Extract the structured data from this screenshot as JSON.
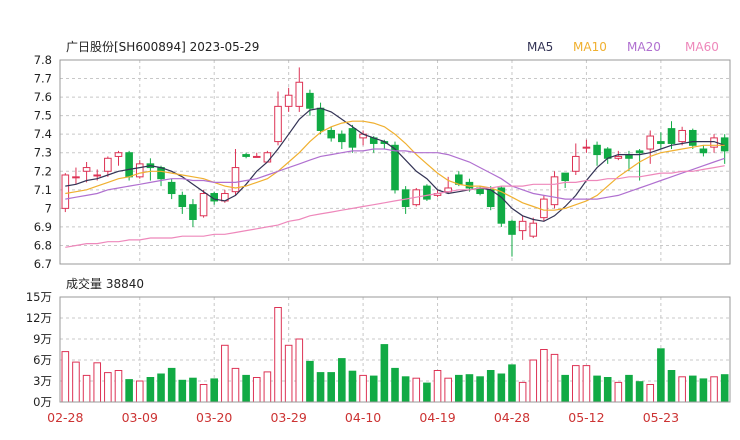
{
  "header": {
    "title": "广日股份[SH600894] 2023-05-29"
  },
  "legend": [
    {
      "label": "MA5",
      "color": "#333355"
    },
    {
      "label": "MA10",
      "color": "#f0b030"
    },
    {
      "label": "MA20",
      "color": "#b070d0"
    },
    {
      "label": "MA60",
      "color": "#ee88bb"
    }
  ],
  "volume_panel": {
    "title": "成交量 38840"
  },
  "colors": {
    "up": "#dd3355",
    "down": "#11aa44"
  },
  "chart_data": [
    {
      "type": "candlestick",
      "title": "广日股份[SH600894] 2023-05-29",
      "ylim": [
        6.7,
        7.8
      ],
      "y_ticks": [
        "7.8",
        "7.7",
        "7.6",
        "7.5",
        "7.4",
        "7.3",
        "7.2",
        "7.1",
        "7",
        "6.9",
        "6.8",
        "6.7"
      ],
      "x_ticks": [
        "02-28",
        "03-09",
        "03-20",
        "03-29",
        "04-10",
        "04-19",
        "04-28",
        "05-12",
        "05-23"
      ],
      "x_tick_index": [
        0,
        7,
        14,
        21,
        28,
        35,
        42,
        49,
        56
      ],
      "grid": true,
      "candles": [
        [
          7.0,
          7.18,
          7.19,
          6.98
        ],
        [
          7.17,
          7.17,
          7.22,
          7.13
        ],
        [
          7.2,
          7.22,
          7.25,
          7.14
        ],
        [
          7.18,
          7.18,
          7.21,
          7.15
        ],
        [
          7.2,
          7.27,
          7.28,
          7.17
        ],
        [
          7.28,
          7.3,
          7.31,
          7.23
        ],
        [
          7.3,
          7.17,
          7.31,
          7.15
        ],
        [
          7.17,
          7.24,
          7.26,
          7.16
        ],
        [
          7.24,
          7.22,
          7.27,
          7.15
        ],
        [
          7.22,
          7.16,
          7.23,
          7.12
        ],
        [
          7.14,
          7.08,
          7.16,
          7.05
        ],
        [
          7.07,
          7.01,
          7.09,
          6.97
        ],
        [
          7.02,
          6.94,
          7.05,
          6.9
        ],
        [
          6.96,
          7.08,
          7.1,
          6.95
        ],
        [
          7.08,
          7.04,
          7.09,
          7.02
        ],
        [
          7.04,
          7.08,
          7.1,
          7.03
        ],
        [
          7.09,
          7.22,
          7.32,
          7.07
        ],
        [
          7.29,
          7.28,
          7.3,
          7.27
        ],
        [
          7.28,
          7.28,
          7.3,
          7.28
        ],
        [
          7.25,
          7.3,
          7.31,
          7.25
        ],
        [
          7.36,
          7.55,
          7.63,
          7.34
        ],
        [
          7.55,
          7.61,
          7.65,
          7.52
        ],
        [
          7.55,
          7.68,
          7.76,
          7.52
        ],
        [
          7.62,
          7.54,
          7.64,
          7.5
        ],
        [
          7.54,
          7.42,
          7.57,
          7.4
        ],
        [
          7.42,
          7.38,
          7.44,
          7.36
        ],
        [
          7.4,
          7.36,
          7.42,
          7.32
        ],
        [
          7.43,
          7.33,
          7.45,
          7.3
        ],
        [
          7.38,
          7.4,
          7.42,
          7.34
        ],
        [
          7.38,
          7.35,
          7.39,
          7.3
        ],
        [
          7.36,
          7.35,
          7.37,
          7.32
        ],
        [
          7.34,
          7.1,
          7.36,
          7.08
        ],
        [
          7.1,
          7.01,
          7.12,
          6.97
        ],
        [
          7.02,
          7.1,
          7.11,
          7.01
        ],
        [
          7.12,
          7.05,
          7.13,
          7.04
        ],
        [
          7.07,
          7.08,
          7.1,
          7.06
        ],
        [
          7.09,
          7.11,
          7.17,
          7.08
        ],
        [
          7.18,
          7.13,
          7.2,
          7.12
        ],
        [
          7.14,
          7.11,
          7.16,
          7.09
        ],
        [
          7.11,
          7.08,
          7.12,
          7.07
        ],
        [
          7.1,
          7.01,
          7.12,
          6.99
        ],
        [
          7.11,
          6.92,
          7.12,
          6.9
        ],
        [
          6.93,
          6.86,
          6.94,
          6.74
        ],
        [
          6.88,
          6.93,
          6.96,
          6.83
        ],
        [
          6.85,
          6.92,
          6.95,
          6.84
        ],
        [
          6.95,
          7.05,
          7.07,
          6.93
        ],
        [
          7.02,
          7.17,
          7.2,
          7.0
        ],
        [
          7.19,
          7.15,
          7.19,
          7.11
        ],
        [
          7.2,
          7.28,
          7.35,
          7.18
        ],
        [
          7.33,
          7.33,
          7.37,
          7.3
        ],
        [
          7.34,
          7.29,
          7.36,
          7.23
        ],
        [
          7.32,
          7.27,
          7.33,
          7.24
        ],
        [
          7.27,
          7.28,
          7.31,
          7.26
        ],
        [
          7.29,
          7.27,
          7.31,
          7.2
        ],
        [
          7.31,
          7.3,
          7.32,
          7.15
        ],
        [
          7.32,
          7.39,
          7.42,
          7.24
        ],
        [
          7.36,
          7.35,
          7.41,
          7.32
        ],
        [
          7.43,
          7.35,
          7.47,
          7.32
        ],
        [
          7.36,
          7.42,
          7.44,
          7.34
        ],
        [
          7.42,
          7.34,
          7.43,
          7.32
        ],
        [
          7.32,
          7.3,
          7.34,
          7.28
        ],
        [
          7.33,
          7.38,
          7.4,
          7.3
        ],
        [
          7.38,
          7.31,
          7.4,
          7.24
        ]
      ],
      "series": [
        {
          "name": "MA5",
          "color": "#333355",
          "values": [
            7.12,
            7.13,
            7.15,
            7.16,
            7.18,
            7.2,
            7.21,
            7.22,
            7.23,
            7.22,
            7.2,
            7.17,
            7.13,
            7.09,
            7.05,
            7.04,
            7.07,
            7.13,
            7.2,
            7.25,
            7.32,
            7.4,
            7.48,
            7.53,
            7.54,
            7.52,
            7.48,
            7.44,
            7.4,
            7.38,
            7.36,
            7.32,
            7.26,
            7.2,
            7.16,
            7.1,
            7.08,
            7.09,
            7.1,
            7.11,
            7.1,
            7.06,
            7.0,
            6.96,
            6.94,
            6.93,
            6.96,
            7.01,
            7.07,
            7.15,
            7.22,
            7.27,
            7.29,
            7.29,
            7.29,
            7.3,
            7.32,
            7.34,
            7.35,
            7.36,
            7.36,
            7.36,
            7.34
          ]
        },
        {
          "name": "MA10",
          "color": "#f0b030",
          "values": [
            7.08,
            7.09,
            7.1,
            7.12,
            7.14,
            7.16,
            7.17,
            7.19,
            7.2,
            7.2,
            7.19,
            7.18,
            7.17,
            7.16,
            7.14,
            7.12,
            7.11,
            7.12,
            7.14,
            7.16,
            7.2,
            7.25,
            7.3,
            7.36,
            7.41,
            7.44,
            7.46,
            7.47,
            7.47,
            7.46,
            7.44,
            7.4,
            7.35,
            7.29,
            7.24,
            7.19,
            7.15,
            7.13,
            7.12,
            7.12,
            7.11,
            7.09,
            7.06,
            7.03,
            7.01,
            6.99,
            6.99,
            7.0,
            7.02,
            7.04,
            7.07,
            7.12,
            7.17,
            7.21,
            7.25,
            7.28,
            7.3,
            7.31,
            7.32,
            7.33,
            7.34,
            7.34,
            7.34
          ]
        },
        {
          "name": "MA20",
          "color": "#b070d0",
          "values": [
            7.05,
            7.06,
            7.07,
            7.08,
            7.1,
            7.11,
            7.12,
            7.13,
            7.14,
            7.15,
            7.16,
            7.16,
            7.15,
            7.15,
            7.14,
            7.14,
            7.14,
            7.15,
            7.16,
            7.18,
            7.2,
            7.22,
            7.24,
            7.26,
            7.28,
            7.29,
            7.3,
            7.31,
            7.31,
            7.32,
            7.32,
            7.31,
            7.31,
            7.3,
            7.3,
            7.3,
            7.29,
            7.27,
            7.25,
            7.22,
            7.19,
            7.16,
            7.12,
            7.1,
            7.08,
            7.07,
            7.06,
            7.05,
            7.05,
            7.05,
            7.05,
            7.06,
            7.07,
            7.09,
            7.11,
            7.13,
            7.15,
            7.17,
            7.19,
            7.21,
            7.23,
            7.25,
            7.27
          ]
        },
        {
          "name": "MA60",
          "color": "#ee88bb",
          "values": [
            6.79,
            6.8,
            6.81,
            6.81,
            6.82,
            6.82,
            6.83,
            6.83,
            6.84,
            6.84,
            6.84,
            6.85,
            6.85,
            6.85,
            6.86,
            6.86,
            6.87,
            6.88,
            6.89,
            6.9,
            6.91,
            6.93,
            6.94,
            6.96,
            6.97,
            6.98,
            6.99,
            7.0,
            7.01,
            7.02,
            7.03,
            7.04,
            7.05,
            7.06,
            7.07,
            7.08,
            7.09,
            7.1,
            7.1,
            7.11,
            7.11,
            7.12,
            7.12,
            7.12,
            7.13,
            7.13,
            7.13,
            7.14,
            7.14,
            7.15,
            7.15,
            7.16,
            7.16,
            7.17,
            7.17,
            7.18,
            7.19,
            7.19,
            7.2,
            7.2,
            7.21,
            7.22,
            7.23
          ]
        }
      ]
    },
    {
      "type": "bar",
      "title": "成交量 38840",
      "ylim": [
        0,
        150000
      ],
      "y_ticks": [
        "15万",
        "12万",
        "9万",
        "6万",
        "3万",
        "0万"
      ],
      "x_ticks": [
        "02-28",
        "03-09",
        "03-20",
        "03-29",
        "04-10",
        "04-19",
        "04-28",
        "05-12",
        "05-23"
      ],
      "values": [
        72000,
        57000,
        38000,
        56000,
        42000,
        45000,
        32000,
        30000,
        35000,
        40000,
        48000,
        31000,
        34000,
        25000,
        33000,
        81000,
        48000,
        38000,
        35000,
        43000,
        135000,
        81000,
        90000,
        58000,
        42000,
        42000,
        62000,
        44000,
        38000,
        37000,
        82000,
        48000,
        36000,
        34000,
        27000,
        45000,
        34000,
        38000,
        39000,
        36000,
        45000,
        40000,
        53000,
        28000,
        60000,
        75000,
        68000,
        38000,
        52000,
        52000,
        37000,
        35000,
        28000,
        38000,
        29000,
        25000,
        76000,
        45000,
        36000,
        37000,
        33000,
        36000,
        39000
      ]
    }
  ]
}
